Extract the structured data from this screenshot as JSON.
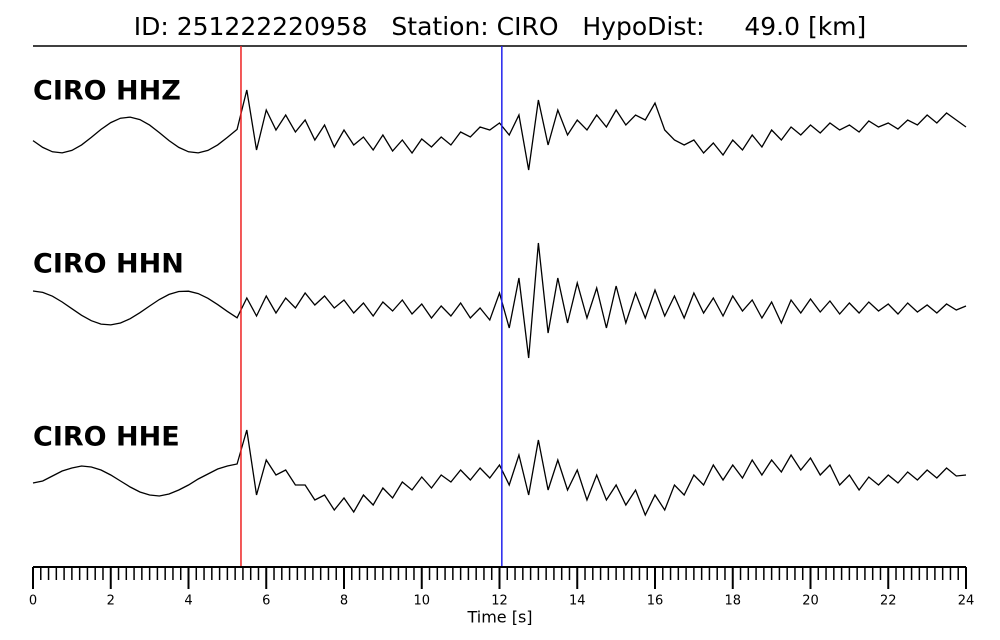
{
  "chart_data": {
    "type": "waveform",
    "title": "ID: 251222220958   Station: CIRO   HypoDist:     49.0 [km]",
    "xlabel": "Time [s]",
    "xlim": [
      0,
      24
    ],
    "xticks": [
      0,
      2,
      4,
      6,
      8,
      10,
      12,
      14,
      16,
      18,
      20,
      22,
      24
    ],
    "minor_tick_step": 0.2,
    "label_color": "#4b9a06",
    "picks": [
      {
        "time": 5.35,
        "color": "#ee2222"
      },
      {
        "time": 12.06,
        "color": "#2222ee"
      }
    ],
    "x": [
      0,
      0.25,
      0.5,
      0.75,
      1,
      1.25,
      1.5,
      1.75,
      2,
      2.25,
      2.5,
      2.75,
      3,
      3.25,
      3.5,
      3.75,
      4,
      4.25,
      4.5,
      4.75,
      5,
      5.25,
      5.5,
      5.75,
      6,
      6.25,
      6.5,
      6.75,
      7,
      7.25,
      7.5,
      7.75,
      8,
      8.25,
      8.5,
      8.75,
      9,
      9.25,
      9.5,
      9.75,
      10,
      10.25,
      10.5,
      10.75,
      11,
      11.25,
      11.5,
      11.75,
      12,
      12.25,
      12.5,
      12.75,
      13,
      13.25,
      13.5,
      13.75,
      14,
      14.25,
      14.5,
      14.75,
      15,
      15.25,
      15.5,
      15.75,
      16,
      16.25,
      16.5,
      16.75,
      17,
      17.25,
      17.5,
      17.75,
      18,
      18.25,
      18.5,
      18.75,
      19,
      19.25,
      19.5,
      19.75,
      20,
      20.25,
      20.5,
      20.75,
      21,
      21.25,
      21.5,
      21.75,
      22,
      22.25,
      22.5,
      22.75,
      23,
      23.25,
      23.5,
      23.75,
      24
    ],
    "series": [
      {
        "name": "CIRO HHZ",
        "color": "#000000",
        "values": [
          -0.56,
          -1.24,
          -1.68,
          -1.79,
          -1.54,
          -0.99,
          -0.24,
          0.56,
          1.24,
          1.68,
          1.79,
          1.54,
          0.99,
          0.24,
          -0.56,
          -1.24,
          -1.68,
          -1.79,
          -1.54,
          -0.99,
          -0.24,
          0.56,
          4.5,
          -1.5,
          2.5,
          0.5,
          2.0,
          0.3,
          1.5,
          -0.5,
          1.0,
          -1.2,
          0.5,
          -1.0,
          -0.2,
          -1.5,
          0.0,
          -1.6,
          -0.5,
          -1.8,
          -0.4,
          -1.2,
          -0.2,
          -1.0,
          0.3,
          -0.2,
          0.8,
          0.5,
          1.2,
          0.0,
          2.0,
          -3.5,
          3.5,
          -1.0,
          2.5,
          0.0,
          1.5,
          0.5,
          2.0,
          0.8,
          2.5,
          1.0,
          2.0,
          1.5,
          3.2,
          0.5,
          -0.5,
          -1.0,
          -0.5,
          -1.8,
          -0.8,
          -2.0,
          -0.5,
          -1.5,
          0.0,
          -1.2,
          0.5,
          -0.5,
          0.8,
          0.0,
          1.0,
          0.2,
          1.2,
          0.5,
          1.0,
          0.3,
          1.4,
          0.8,
          1.2,
          0.6,
          1.5,
          1.0,
          2.0,
          1.2,
          2.2,
          1.5,
          0.8
        ]
      },
      {
        "name": "CIRO HHN",
        "color": "#000000",
        "values": [
          1.7,
          1.56,
          1.18,
          0.6,
          -0.07,
          -0.73,
          -1.27,
          -1.61,
          -1.69,
          -1.5,
          -1.07,
          -0.47,
          0.2,
          0.85,
          1.36,
          1.65,
          1.68,
          1.44,
          0.97,
          0.34,
          -0.34,
          -0.98,
          1.0,
          -0.8,
          1.2,
          -0.5,
          1.0,
          0.0,
          1.5,
          0.3,
          1.2,
          0.0,
          0.8,
          -0.5,
          0.5,
          -0.8,
          0.6,
          -0.3,
          0.8,
          -0.6,
          0.4,
          -1.0,
          0.2,
          -0.8,
          0.5,
          -1.0,
          0.0,
          -1.2,
          1.5,
          -2.0,
          3.0,
          -5.0,
          6.5,
          -2.5,
          3.0,
          -1.5,
          2.5,
          -1.0,
          2.0,
          -2.0,
          2.2,
          -1.5,
          1.5,
          -1.0,
          1.8,
          -0.8,
          1.2,
          -1.0,
          1.5,
          -0.5,
          1.0,
          -0.8,
          1.2,
          -0.3,
          0.8,
          -1.0,
          0.6,
          -1.5,
          0.8,
          -0.5,
          0.9,
          -0.4,
          0.7,
          -0.6,
          0.5,
          -0.5,
          0.6,
          -0.3,
          0.4,
          -0.6,
          0.5,
          -0.4,
          0.3,
          -0.5,
          0.4,
          -0.2,
          0.2
        ]
      },
      {
        "name": "CIRO HHE",
        "color": "#000000",
        "values": [
          -0.3,
          -0.1,
          0.4,
          0.9,
          1.2,
          1.4,
          1.3,
          1.0,
          0.5,
          -0.1,
          -0.7,
          -1.2,
          -1.5,
          -1.6,
          -1.4,
          -1.0,
          -0.5,
          0.1,
          0.6,
          1.1,
          1.4,
          1.6,
          5.0,
          -1.5,
          2.0,
          0.5,
          1.0,
          -0.5,
          -0.5,
          -2.0,
          -1.5,
          -3.0,
          -1.8,
          -3.2,
          -1.5,
          -2.5,
          -0.8,
          -1.8,
          -0.2,
          -1.0,
          0.3,
          -0.8,
          0.5,
          -0.2,
          1.0,
          0.0,
          1.2,
          0.2,
          1.5,
          -0.5,
          2.5,
          -1.5,
          4.0,
          -1.0,
          2.0,
          -1.0,
          1.0,
          -2.0,
          0.5,
          -2.0,
          -0.5,
          -2.5,
          -1.0,
          -3.5,
          -1.5,
          -3.0,
          -0.5,
          -1.5,
          0.5,
          -0.5,
          1.5,
          0.0,
          1.5,
          0.2,
          2.0,
          0.5,
          2.0,
          0.8,
          2.5,
          1.0,
          2.2,
          0.5,
          1.5,
          -0.5,
          0.5,
          -1.0,
          0.3,
          -0.5,
          0.5,
          -0.3,
          0.8,
          0.0,
          1.0,
          0.2,
          1.2,
          0.4,
          0.5
        ]
      }
    ]
  }
}
